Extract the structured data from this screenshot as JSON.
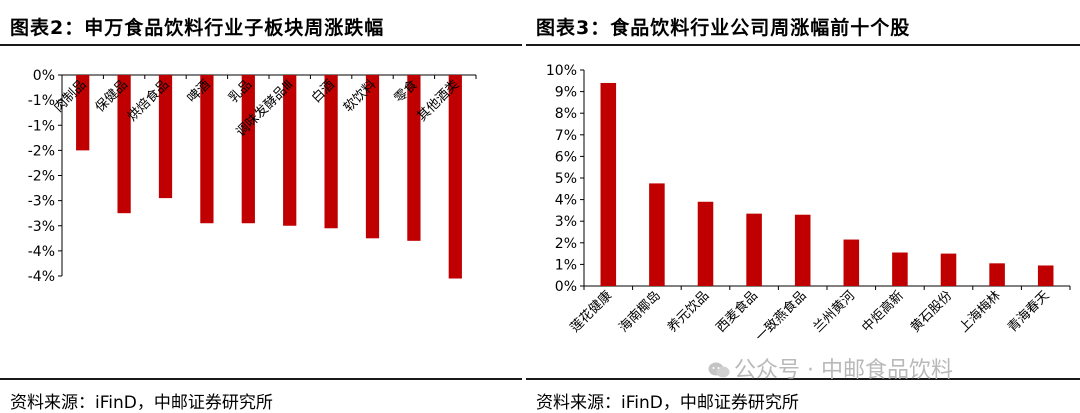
{
  "left": {
    "title": "图表2：申万食品饮料行业子板块周涨跌幅",
    "source": "资料来源：iFinD，中邮证券研究所"
  },
  "right": {
    "title": "图表3：食品饮料行业公司周涨幅前十个股",
    "source": "资料来源：iFinD，中邮证券研究所"
  },
  "watermark": "公众号 · 中邮食品饮料",
  "colors": {
    "bar": "#C00000",
    "axis": "#000000",
    "rule": "#1a1a1a"
  },
  "chart_data": [
    {
      "type": "bar",
      "title": "申万食品饮料行业子板块周涨跌幅",
      "categories": [
        "肉制品",
        "保健品",
        "烘焙食品",
        "啤酒",
        "乳品",
        "调味发酵品Ⅲ",
        "白酒",
        "软饮料",
        "零食",
        "其他酒类"
      ],
      "values": [
        -1.5,
        -2.75,
        -2.45,
        -2.95,
        -2.95,
        -3.0,
        -3.05,
        -3.25,
        -3.3,
        -4.05
      ],
      "ylim": [
        -4,
        0
      ],
      "y_ticks": [
        0,
        -0.5,
        -1,
        -1.5,
        -2,
        -2.5,
        -3,
        -3.5,
        -4
      ],
      "y_tick_labels": [
        "0%",
        "-1%",
        "-1%",
        "-2%",
        "-2%",
        "-3%",
        "-3%",
        "-4%",
        "-4%"
      ],
      "grid": false,
      "legend": "none"
    },
    {
      "type": "bar",
      "title": "食品饮料行业公司周涨幅前十个股",
      "categories": [
        "莲花健康",
        "海南椰岛",
        "养元饮品",
        "西麦食品",
        "一致燕食品",
        "兰州黄河",
        "中炬高新",
        "黄石股份",
        "上海梅林",
        "青海春天"
      ],
      "values": [
        9.4,
        4.75,
        3.9,
        3.35,
        3.3,
        2.15,
        1.55,
        1.5,
        1.05,
        0.95
      ],
      "ylim": [
        0,
        10
      ],
      "y_ticks": [
        0,
        1,
        2,
        3,
        4,
        5,
        6,
        7,
        8,
        9,
        10
      ],
      "y_tick_labels": [
        "0%",
        "1%",
        "2%",
        "3%",
        "4%",
        "5%",
        "6%",
        "7%",
        "8%",
        "9%",
        "10%"
      ],
      "grid": false,
      "legend": "none"
    }
  ]
}
